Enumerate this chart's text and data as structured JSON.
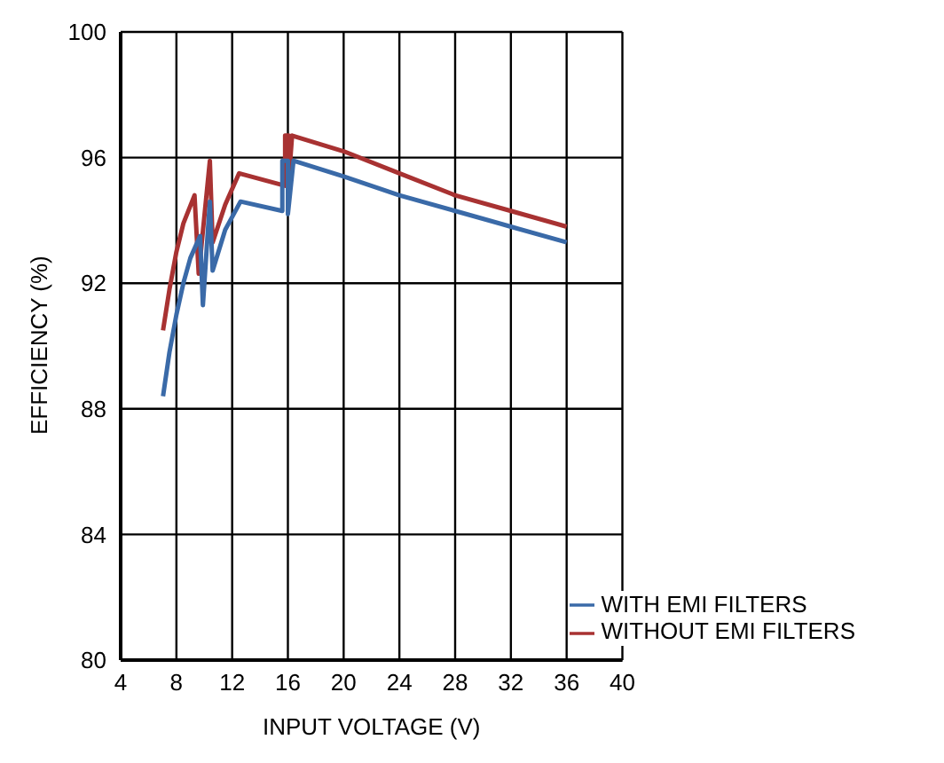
{
  "chart_data": {
    "type": "line",
    "xlabel": "INPUT VOLTAGE (V)",
    "ylabel": "EFFICIENCY (%)",
    "xlim": [
      4,
      40
    ],
    "xticks": [
      4,
      8,
      12,
      16,
      20,
      24,
      28,
      32,
      36,
      40
    ],
    "ylim": [
      80,
      100
    ],
    "yticks": [
      80,
      84,
      88,
      92,
      96,
      100
    ],
    "grid": true,
    "legend": "bottom right",
    "marker": "none",
    "line_style": "solid",
    "series": [
      {
        "name": "WITHOUT EMI FILTERS",
        "color": "#a83232",
        "x": [
          7.04,
          7.5,
          8,
          8.5,
          9.3,
          9.6,
          10.4,
          10.6,
          11.5,
          12.5,
          15.8,
          15.8,
          16.05,
          16.05,
          16.3,
          20,
          24,
          28,
          32,
          36
        ],
        "values": [
          90.5,
          91.8,
          93.0,
          93.9,
          94.8,
          92.3,
          95.9,
          93.3,
          94.5,
          95.5,
          95.1,
          96.7,
          96.7,
          95.2,
          96.7,
          96.2,
          95.5,
          94.8,
          94.3,
          93.8
        ]
      },
      {
        "name": "WITH EMI FILTERS",
        "color": "#3a6aa8",
        "x": [
          7.04,
          7.5,
          8,
          8.5,
          9,
          9.7,
          9.9,
          10.4,
          10.6,
          11.5,
          12.6,
          15.6,
          15.6,
          16,
          16,
          16.4,
          20,
          24,
          28,
          32,
          36
        ],
        "values": [
          88.4,
          89.8,
          91.0,
          92.0,
          92.8,
          93.5,
          91.3,
          94.6,
          92.4,
          93.7,
          94.6,
          94.3,
          95.9,
          95.9,
          94.2,
          95.9,
          95.4,
          94.8,
          94.3,
          93.8,
          93.3
        ]
      }
    ]
  }
}
